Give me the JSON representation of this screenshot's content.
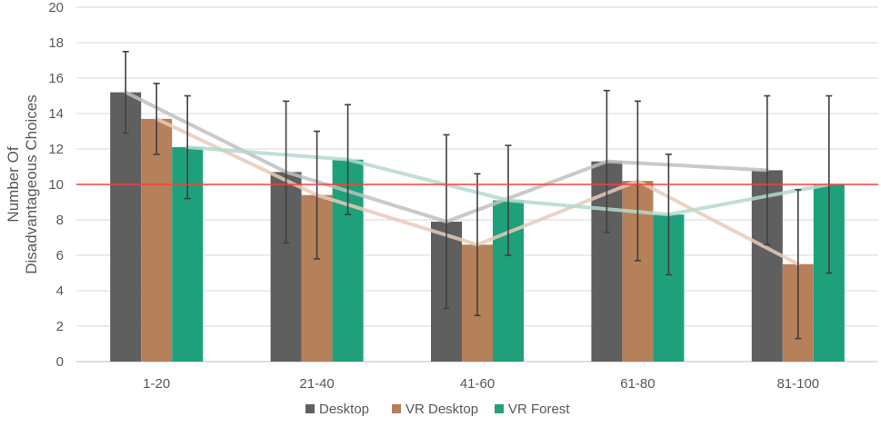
{
  "chart_data": {
    "type": "bar",
    "title": "",
    "xlabel": "",
    "ylabel_lines": [
      "Number Of",
      "Disadvantageous Choices"
    ],
    "ylim": [
      0,
      20
    ],
    "yticks": [
      0,
      2,
      4,
      6,
      8,
      10,
      12,
      14,
      16,
      18,
      20
    ],
    "grid": true,
    "legend_position": "bottom-center",
    "categories": [
      "1-20",
      "21-40",
      "41-60",
      "61-80",
      "81-100"
    ],
    "series": [
      {
        "name": "Desktop",
        "color": "#5f5f5f",
        "line_color": "#bfbfbf",
        "values": [
          15.2,
          10.7,
          7.9,
          11.3,
          10.8
        ],
        "error": [
          2.3,
          4.0,
          4.9,
          4.0,
          4.2
        ]
      },
      {
        "name": "VR Desktop",
        "color": "#b5805a",
        "line_color": "#e7cbb9",
        "values": [
          13.7,
          9.4,
          6.6,
          10.2,
          5.5
        ],
        "error": [
          2.0,
          3.6,
          4.0,
          4.5,
          4.2
        ]
      },
      {
        "name": "VR Forest",
        "color": "#1ea07a",
        "line_color": "#b5d9cd",
        "values": [
          12.1,
          11.4,
          9.1,
          8.3,
          10.0
        ],
        "error": [
          2.9,
          3.1,
          3.1,
          3.4,
          5.0
        ]
      }
    ],
    "reference_line": {
      "value": 10,
      "color": "#ff3b3b"
    }
  }
}
